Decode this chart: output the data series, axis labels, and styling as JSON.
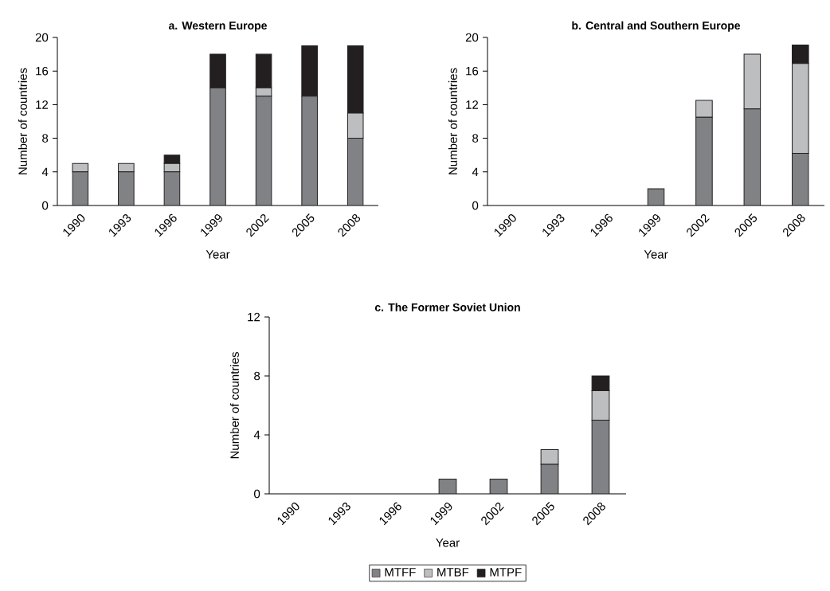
{
  "chart_data": [
    {
      "type": "bar",
      "stacked": true,
      "title": "a. Western Europe",
      "xlabel": "Year",
      "ylabel": "Number of countries",
      "categories": [
        "1990",
        "1993",
        "1996",
        "1999",
        "2002",
        "2005",
        "2008"
      ],
      "ylim": [
        0,
        20
      ],
      "yticks": [
        0,
        4,
        8,
        12,
        16,
        20
      ],
      "series": [
        {
          "color": "#808285",
          "values": [
            4,
            4,
            4,
            14,
            13,
            13,
            8
          ]
        },
        {
          "color": "#bcbec0",
          "values": [
            1,
            1,
            1,
            0,
            1,
            0,
            3
          ]
        },
        {
          "color": "#231f20",
          "values": [
            0,
            0,
            1,
            4,
            4,
            6,
            8
          ]
        }
      ]
    },
    {
      "type": "bar",
      "stacked": true,
      "title": "b. Central and Southern Europe",
      "xlabel": "Year",
      "ylabel": "Number of countries",
      "categories": [
        "1990",
        "1993",
        "1996",
        "1999",
        "2002",
        "2005",
        "2008"
      ],
      "ylim": [
        0,
        20
      ],
      "yticks": [
        0,
        4,
        8,
        12,
        16,
        20
      ],
      "series": [
        {
          "color": "#808285",
          "values": [
            0,
            0,
            0,
            2,
            10.5,
            11.5,
            6.2
          ]
        },
        {
          "color": "#bcbec0",
          "values": [
            0,
            0,
            0,
            0,
            2,
            6.5,
            10.7
          ]
        },
        {
          "color": "#231f20",
          "values": [
            0,
            0,
            0,
            0,
            0,
            0,
            2.2
          ]
        }
      ]
    },
    {
      "type": "bar",
      "stacked": true,
      "title": "c. The Former Soviet Union",
      "xlabel": "Year",
      "ylabel": "Number of countries",
      "categories": [
        "1990",
        "1993",
        "1996",
        "1999",
        "2002",
        "2005",
        "2008"
      ],
      "ylim": [
        0,
        12
      ],
      "yticks": [
        0,
        4,
        8,
        12
      ],
      "legend": "bottom",
      "series": [
        {
          "name": "MTFF",
          "color": "#808285",
          "values": [
            0,
            0,
            0,
            1,
            1,
            2,
            5
          ]
        },
        {
          "name": "MTBF",
          "color": "#bcbec0",
          "values": [
            0,
            0,
            0,
            0,
            0,
            1,
            2
          ]
        },
        {
          "name": "MTPF",
          "color": "#231f20",
          "values": [
            0,
            0,
            0,
            0,
            0,
            0,
            1
          ]
        }
      ]
    }
  ]
}
